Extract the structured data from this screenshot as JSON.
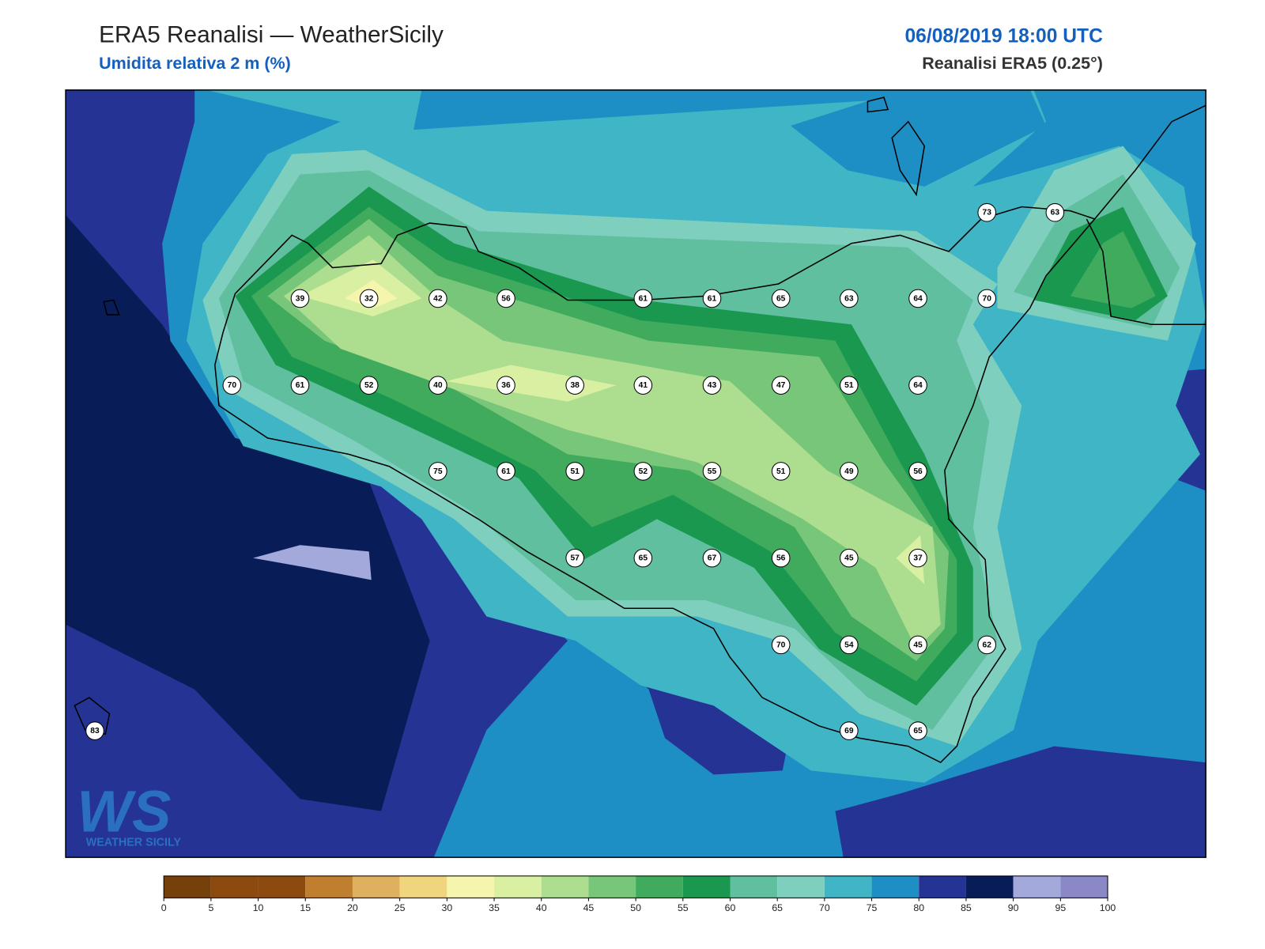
{
  "header": {
    "title": "ERA5 Reanalisi — WeatherSicily",
    "subtitle": "Umidita relativa 2 m (%)",
    "datetime": "06/08/2019 18:00 UTC",
    "source": "Reanalisi ERA5 (0.25°)"
  },
  "stations": [
    39,
    32,
    42,
    56,
    61,
    61,
    65,
    63,
    64,
    70,
    70,
    61,
    52,
    40,
    36,
    38,
    41,
    43,
    47,
    51,
    64,
    75,
    61,
    51,
    52,
    55,
    51,
    49,
    56,
    57,
    65,
    67,
    56,
    45,
    37,
    70,
    54,
    45,
    62,
    69,
    65,
    83,
    73,
    63
  ],
  "colorbar": {
    "ticks": [
      0,
      5,
      10,
      15,
      20,
      25,
      30,
      35,
      40,
      45,
      50,
      55,
      60,
      65,
      70,
      75,
      80,
      85,
      90,
      95,
      100
    ],
    "colors": [
      "#76400b",
      "#8c4a0f",
      "#8c4a0f",
      "#c07f2e",
      "#dfb05f",
      "#f0d57e",
      "#f5f5ae",
      "#d9f0a3",
      "#addd8e",
      "#78c679",
      "#41ab5d",
      "#1a9850",
      "#5fbf9f",
      "#7fcfbf",
      "#40b5c6",
      "#1e8fc4",
      "#253494",
      "#081d58",
      "#a3aadb",
      "#8b88c8"
    ]
  },
  "logo": {
    "mark": "WS",
    "name": "WEATHER SICILY"
  }
}
